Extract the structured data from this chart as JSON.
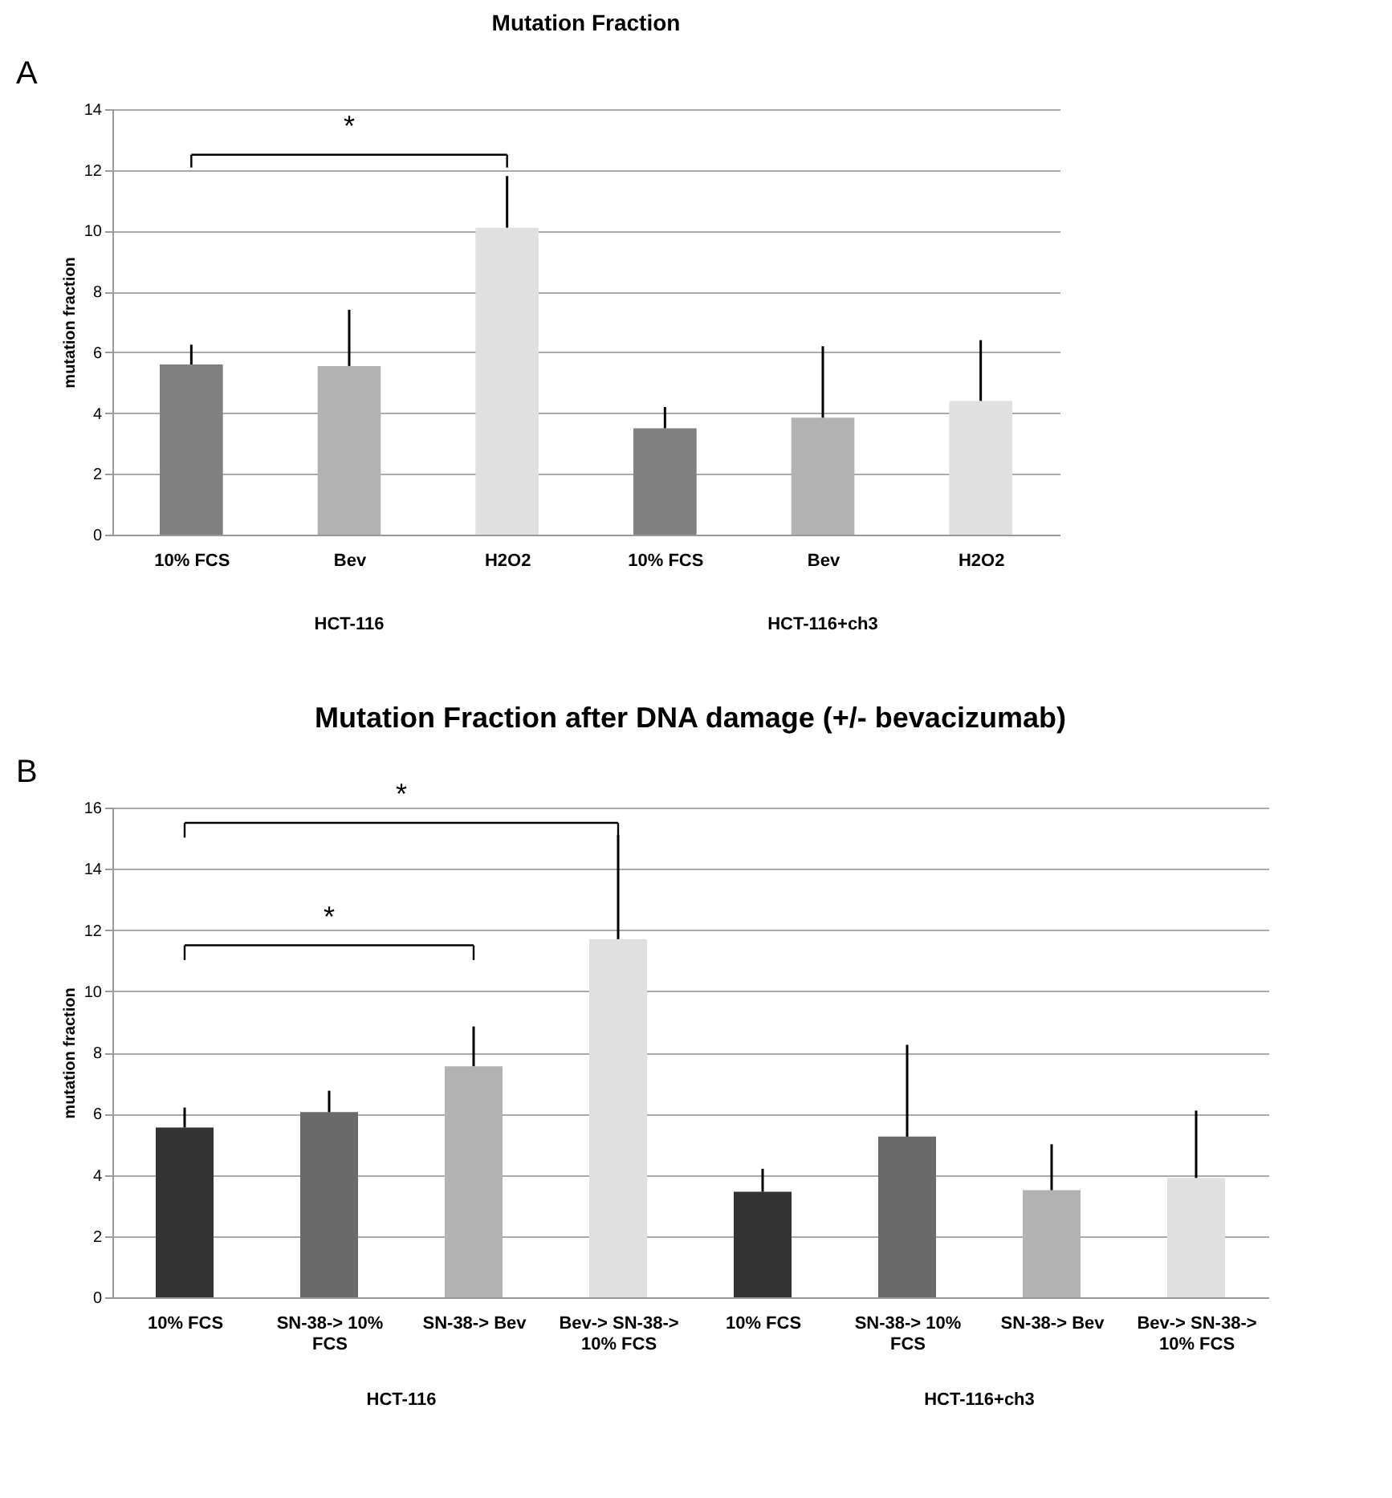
{
  "chart_data": [
    {
      "type": "bar",
      "title": "Mutation Fraction",
      "ylabel": "mutation fraction",
      "categories": [
        "10% FCS",
        "Bev",
        "H2O2",
        "10% FCS",
        "Bev",
        "H2O2"
      ],
      "values": [
        5.6,
        5.55,
        10.1,
        3.5,
        3.85,
        4.4
      ],
      "colors": [
        "#808080",
        "#b2b2b2",
        "#e0e0e0",
        "#808080",
        "#b2b2b2",
        "#e0e0e0"
      ],
      "errors": [
        [
          5.6,
          6.25
        ],
        [
          5.55,
          7.4
        ],
        [
          10.1,
          11.8
        ],
        [
          3.5,
          4.2
        ],
        [
          3.85,
          6.2
        ],
        [
          4.4,
          6.4
        ]
      ],
      "ylim": [
        0,
        14
      ],
      "yticks": [
        0,
        2,
        4,
        6,
        8,
        10,
        12,
        14
      ],
      "grid": "y",
      "annotations": [
        "A",
        "*",
        "HCT-116",
        "HCT-116+ch3"
      ]
    },
    {
      "type": "bar",
      "title": "Mutation Fraction after DNA damage (+/- bevacizumab)",
      "ylabel": "mutation fraction",
      "categories": [
        "10% FCS",
        "SN-38-> 10% FCS",
        "SN-38-> Bev",
        "Bev-> SN-38-> 10% FCS",
        "10% FCS",
        "SN-38-> 10% FCS",
        "SN-38-> Bev",
        "Bev-> SN-38-> 10% FCS"
      ],
      "values": [
        5.55,
        6.05,
        7.55,
        11.7,
        3.45,
        5.25,
        3.5,
        3.9
      ],
      "colors": [
        "#333333",
        "#6a6a6a",
        "#b2b2b2",
        "#e0e0e0",
        "#333333",
        "#6a6a6a",
        "#b2b2b2",
        "#e0e0e0"
      ],
      "errors": [
        [
          5.55,
          6.2
        ],
        [
          6.05,
          6.75
        ],
        [
          7.55,
          8.85
        ],
        [
          11.7,
          15.1
        ],
        [
          3.45,
          4.2
        ],
        [
          5.25,
          8.25
        ],
        [
          3.5,
          5.0
        ],
        [
          3.9,
          6.1
        ]
      ],
      "ylim": [
        0,
        16
      ],
      "yticks": [
        0,
        2,
        4,
        6,
        8,
        10,
        12,
        14,
        16
      ],
      "grid": "y",
      "annotations": [
        "B",
        "*",
        "*",
        "HCT-116",
        "HCT-116+ch3"
      ]
    }
  ]
}
